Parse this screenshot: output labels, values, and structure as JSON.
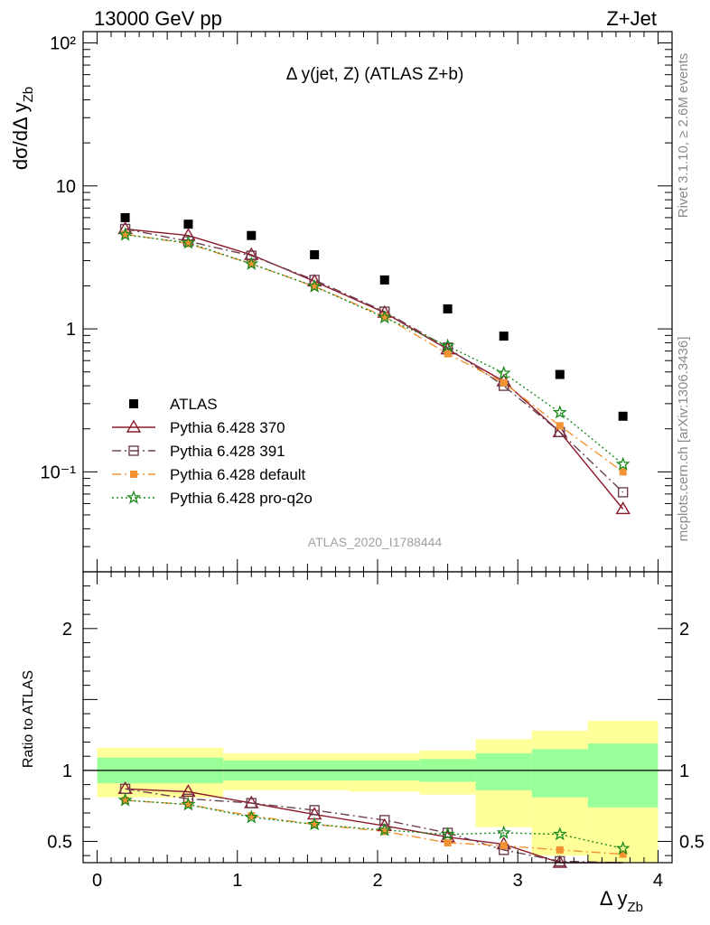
{
  "header": {
    "left": "13000 GeV pp",
    "right": "Z+Jet"
  },
  "side_labels": {
    "rivet": "Rivet 3.1.10, ≥ 2.6M events",
    "mcplots": "mcplots.cern.ch [arXiv:1306.3436]"
  },
  "colors": {
    "data": "#000000",
    "p370": "#8b1a2b",
    "p391": "#6b4050",
    "pdefault": "#f39232",
    "pq2o": "#1a8a1a",
    "band_inner": "#99ff99",
    "band_outer": "#ffff99"
  },
  "chart_data": [
    {
      "type": "scatter",
      "title": "Δ y(jet, Z) (ATLAS Z+b)",
      "ylabel": "dσ/dΔ y_Zb",
      "watermark": "ATLAS_2020_I1788444",
      "yscale": "log",
      "xlim": [
        -0.1,
        4.1
      ],
      "ylim": [
        0.02,
        120
      ],
      "yticks": [
        {
          "v": 0.1,
          "label": "10⁻¹"
        },
        {
          "v": 1,
          "label": "1"
        },
        {
          "v": 10,
          "label": "10"
        },
        {
          "v": 100,
          "label": "10²"
        }
      ],
      "legend_position": "middle-left",
      "series": [
        {
          "name": "ATLAS",
          "marker": "square",
          "x": [
            0.2,
            0.65,
            1.1,
            1.55,
            2.05,
            2.5,
            2.9,
            3.3,
            3.75
          ],
          "y": [
            6.0,
            5.4,
            4.5,
            3.3,
            2.2,
            1.38,
            0.89,
            0.48,
            0.245
          ]
        },
        {
          "name": "Pythia 6.428 370",
          "marker": "triangle",
          "line": "solid",
          "color": "#8b1a2b",
          "x": [
            0.2,
            0.65,
            1.1,
            1.55,
            2.05,
            2.5,
            2.9,
            3.3,
            3.75
          ],
          "y": [
            5.0,
            4.5,
            3.3,
            2.15,
            1.3,
            0.72,
            0.43,
            0.19,
            0.055
          ]
        },
        {
          "name": "Pythia 6.428 391",
          "marker": "open-square",
          "line": "dashdot",
          "color": "#6b4050",
          "x": [
            0.2,
            0.65,
            1.1,
            1.55,
            2.05,
            2.5,
            2.9,
            3.3,
            3.75
          ],
          "y": [
            5.0,
            4.1,
            3.25,
            2.2,
            1.32,
            0.74,
            0.4,
            0.19,
            0.072
          ]
        },
        {
          "name": "Pythia 6.428 default",
          "marker": "filled-square",
          "line": "dashdot",
          "color": "#f39232",
          "x": [
            0.2,
            0.65,
            1.1,
            1.55,
            2.05,
            2.5,
            2.9,
            3.3,
            3.75
          ],
          "y": [
            4.6,
            3.95,
            2.85,
            1.98,
            1.22,
            0.67,
            0.42,
            0.21,
            0.1
          ]
        },
        {
          "name": "Pythia 6.428 pro-q2o",
          "marker": "star",
          "line": "dotted",
          "color": "#1a8a1a",
          "x": [
            0.2,
            0.65,
            1.1,
            1.55,
            2.05,
            2.5,
            2.9,
            3.3,
            3.75
          ],
          "y": [
            4.55,
            4.0,
            2.85,
            1.98,
            1.2,
            0.76,
            0.49,
            0.26,
            0.113
          ]
        }
      ]
    },
    {
      "type": "line",
      "ylabel": "Ratio to ATLAS",
      "xlabel": "Δ y_Zb",
      "xlim": [
        -0.1,
        4.1
      ],
      "ylim": [
        0.35,
        2.4
      ],
      "xticks": [
        0,
        1,
        2,
        3,
        4
      ],
      "yticks": [
        0.5,
        1,
        2
      ],
      "bands": [
        {
          "x0": 0.0,
          "x1": 0.9,
          "inner": [
            0.91,
            1.09
          ],
          "outer": [
            0.81,
            1.16
          ]
        },
        {
          "x0": 0.9,
          "x1": 1.8,
          "inner": [
            0.93,
            1.07
          ],
          "outer": [
            0.86,
            1.12
          ]
        },
        {
          "x0": 1.8,
          "x1": 2.3,
          "inner": [
            0.93,
            1.07
          ],
          "outer": [
            0.85,
            1.12
          ]
        },
        {
          "x0": 2.3,
          "x1": 2.7,
          "inner": [
            0.92,
            1.08
          ],
          "outer": [
            0.83,
            1.14
          ]
        },
        {
          "x0": 2.7,
          "x1": 3.1,
          "inner": [
            0.86,
            1.12
          ],
          "outer": [
            0.6,
            1.22
          ]
        },
        {
          "x0": 3.1,
          "x1": 3.5,
          "inner": [
            0.81,
            1.15
          ],
          "outer": [
            0.4,
            1.28
          ]
        },
        {
          "x0": 3.5,
          "x1": 4.0,
          "inner": [
            0.74,
            1.19
          ],
          "outer": [
            0.2,
            1.35
          ]
        }
      ],
      "series": [
        {
          "name": "Pythia 6.428 370",
          "x": [
            0.2,
            0.65,
            1.1,
            1.55,
            2.05,
            2.5,
            2.9,
            3.3,
            3.75
          ],
          "y": [
            0.87,
            0.85,
            0.77,
            0.69,
            0.61,
            0.53,
            0.48,
            0.35,
            0.23
          ]
        },
        {
          "name": "Pythia 6.428 391",
          "x": [
            0.2,
            0.65,
            1.1,
            1.55,
            2.05,
            2.5,
            2.9,
            3.3,
            3.75
          ],
          "y": [
            0.87,
            0.8,
            0.77,
            0.72,
            0.65,
            0.56,
            0.44,
            0.36,
            0.29
          ]
        },
        {
          "name": "Pythia 6.428 default",
          "x": [
            0.2,
            0.65,
            1.1,
            1.55,
            2.05,
            2.5,
            2.9,
            3.3,
            3.75
          ],
          "y": [
            0.79,
            0.76,
            0.68,
            0.62,
            0.57,
            0.49,
            0.47,
            0.44,
            0.41
          ]
        },
        {
          "name": "Pythia 6.428 pro-q2o",
          "x": [
            0.2,
            0.65,
            1.1,
            1.55,
            2.05,
            2.5,
            2.9,
            3.3,
            3.75
          ],
          "y": [
            0.79,
            0.76,
            0.67,
            0.62,
            0.58,
            0.55,
            0.56,
            0.55,
            0.45
          ]
        }
      ]
    }
  ]
}
